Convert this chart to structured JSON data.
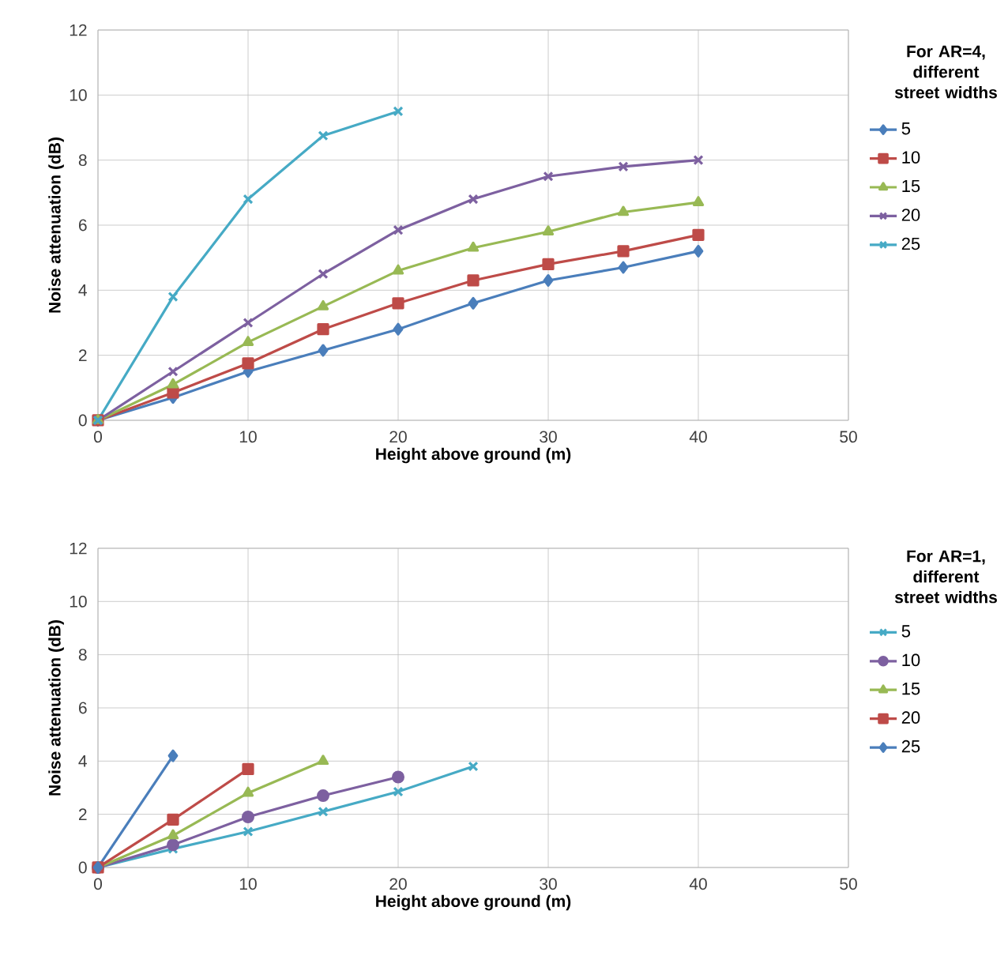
{
  "chart_data": [
    {
      "type": "line",
      "xlabel": "Height above ground (m)",
      "ylabel": "Noise attenuation (dB)",
      "legend_title": "For AR=4, different street widths",
      "xlim": [
        0,
        50
      ],
      "ylim": [
        0,
        12
      ],
      "xticks": [
        0,
        10,
        20,
        30,
        40,
        50
      ],
      "yticks": [
        0,
        2,
        4,
        6,
        8,
        10,
        12
      ],
      "grid": true,
      "legend": "right",
      "line_style": "solid",
      "x": [
        0,
        5,
        10,
        15,
        20,
        25,
        30,
        35,
        40
      ],
      "series": [
        {
          "name": "5",
          "color": "#4a7ebb",
          "marker": "diamond",
          "values": [
            0,
            0.7,
            1.5,
            2.15,
            2.8,
            3.6,
            4.3,
            4.7,
            5.2
          ]
        },
        {
          "name": "10",
          "color": "#be4b48",
          "marker": "square",
          "values": [
            0,
            0.85,
            1.75,
            2.8,
            3.6,
            4.3,
            4.8,
            5.2,
            5.7
          ]
        },
        {
          "name": "15",
          "color": "#98b954",
          "marker": "triangle",
          "values": [
            0,
            1.1,
            2.4,
            3.5,
            4.6,
            5.3,
            5.8,
            6.4,
            6.7
          ]
        },
        {
          "name": "20",
          "color": "#7d60a0",
          "marker": "cross",
          "values": [
            0,
            1.5,
            3.0,
            4.5,
            5.85,
            6.8,
            7.5,
            7.8,
            8.0
          ]
        },
        {
          "name": "25",
          "color": "#46aac5",
          "marker": "cross",
          "x": [
            0,
            5,
            10,
            15,
            20
          ],
          "values": [
            0,
            3.8,
            6.8,
            8.75,
            9.5
          ]
        }
      ]
    },
    {
      "type": "line",
      "xlabel": "Height above ground (m)",
      "ylabel": "Noise attenuation (dB)",
      "legend_title": "For AR=1, different street widths",
      "xlim": [
        0,
        50
      ],
      "ylim": [
        0,
        12
      ],
      "xticks": [
        0,
        10,
        20,
        30,
        40,
        50
      ],
      "yticks": [
        0,
        2,
        4,
        6,
        8,
        10,
        12
      ],
      "grid": true,
      "legend": "right",
      "line_style": "solid",
      "series": [
        {
          "name": "5",
          "color": "#46aac5",
          "marker": "cross",
          "x": [
            0,
            5,
            10,
            15,
            20,
            25
          ],
          "values": [
            0,
            0.7,
            1.35,
            2.1,
            2.85,
            3.8
          ]
        },
        {
          "name": "10",
          "color": "#7d60a0",
          "marker": "circle",
          "x": [
            0,
            5,
            10,
            15,
            20
          ],
          "values": [
            0,
            0.85,
            1.9,
            2.7,
            3.4
          ]
        },
        {
          "name": "15",
          "color": "#98b954",
          "marker": "triangle",
          "x": [
            0,
            5,
            10,
            15
          ],
          "values": [
            0,
            1.2,
            2.8,
            4.0
          ]
        },
        {
          "name": "20",
          "color": "#be4b48",
          "marker": "square",
          "x": [
            0,
            5,
            10
          ],
          "values": [
            0,
            1.8,
            3.7
          ]
        },
        {
          "name": "25",
          "color": "#4a7ebb",
          "marker": "diamond",
          "x": [
            0,
            5
          ],
          "values": [
            0,
            4.2
          ]
        }
      ]
    }
  ]
}
